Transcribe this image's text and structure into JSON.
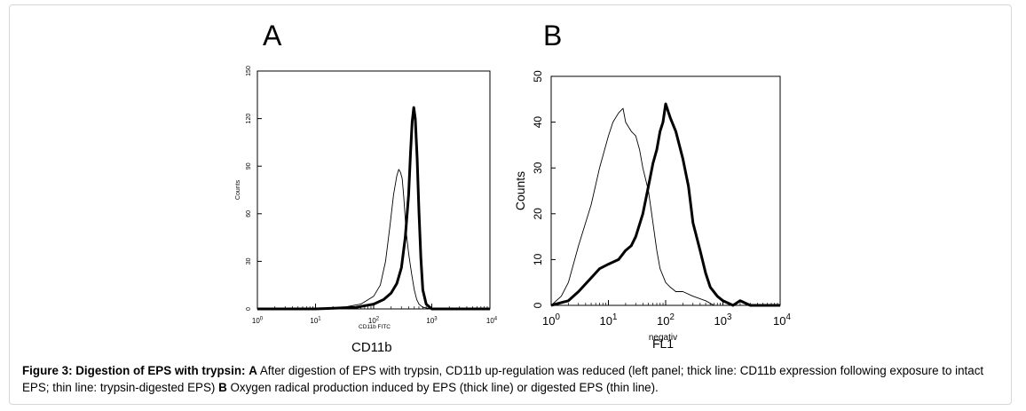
{
  "panels": {
    "a_letter": "A",
    "b_letter": "B"
  },
  "caption": {
    "figure_label": "Figure 3: Digestion of EPS with trypsin:",
    "a_label": "A",
    "a_text": " After digestion of EPS with trypsin, CD11b up-regulation was reduced (left panel; thick line: CD11b expression following exposure to intact EPS; thin line: trypsin-digested EPS) ",
    "b_label": "B",
    "b_text": " Oxygen radical production induced by EPS (thick line) or digested EPS (thin line)."
  },
  "chart_data": [
    {
      "type": "line",
      "panel": "A",
      "xscale": "log",
      "xlim": [
        1,
        10000
      ],
      "ylim": [
        0,
        150
      ],
      "xticks": [
        "10^0",
        "10^1",
        "10^2",
        "10^3",
        "10^4"
      ],
      "yticks": [
        "0",
        "30",
        "60",
        "90",
        "120",
        "150"
      ],
      "ylabel": "Counts",
      "xlabel_inner": "CD11b FITC",
      "xlabel": "CD11b",
      "series": [
        {
          "style": "thick",
          "x": [
            1,
            10,
            50,
            100,
            150,
            200,
            250,
            300,
            350,
            400,
            430,
            460,
            490,
            520,
            560,
            600,
            650,
            700,
            800,
            1000,
            2000,
            10000
          ],
          "y": [
            0,
            0,
            1,
            3,
            6,
            10,
            16,
            26,
            45,
            72,
            98,
            118,
            127,
            120,
            95,
            62,
            32,
            12,
            3,
            0,
            0,
            0
          ]
        },
        {
          "style": "thin",
          "x": [
            1,
            10,
            30,
            60,
            100,
            130,
            160,
            190,
            220,
            250,
            270,
            290,
            310,
            330,
            360,
            400,
            450,
            500,
            550,
            600,
            700,
            1000,
            10000
          ],
          "y": [
            0,
            0,
            1,
            3,
            8,
            15,
            30,
            52,
            72,
            84,
            88,
            86,
            82,
            70,
            50,
            35,
            22,
            12,
            6,
            3,
            1,
            0,
            0
          ]
        }
      ]
    },
    {
      "type": "line",
      "panel": "B",
      "xscale": "log",
      "xlim": [
        1,
        10000
      ],
      "ylim": [
        0,
        50
      ],
      "xticks": [
        "10^0",
        "10^1",
        "10^2",
        "10^3",
        "10^4"
      ],
      "yticks": [
        "0",
        "10",
        "20",
        "30",
        "40",
        "50"
      ],
      "ylabel": "Counts",
      "xlabel": "FL1",
      "xlabel_below": "negativ",
      "series": [
        {
          "style": "thick",
          "x": [
            1,
            2,
            3,
            5,
            7,
            10,
            15,
            20,
            25,
            30,
            40,
            50,
            60,
            70,
            80,
            90,
            100,
            120,
            150,
            200,
            250,
            300,
            400,
            500,
            600,
            800,
            1000,
            1500,
            2000,
            3000,
            10000
          ],
          "y": [
            0,
            1,
            3,
            6,
            8,
            9,
            10,
            12,
            13,
            15,
            20,
            26,
            31,
            34,
            38,
            40,
            44,
            41,
            38,
            32,
            26,
            18,
            12,
            7,
            4,
            2,
            1,
            0,
            1,
            0,
            0
          ]
        },
        {
          "style": "thin",
          "x": [
            1,
            1.5,
            2,
            3,
            5,
            7,
            10,
            12,
            15,
            18,
            20,
            25,
            30,
            35,
            40,
            50,
            60,
            70,
            80,
            100,
            120,
            150,
            200,
            300,
            500,
            700,
            1000,
            10000
          ],
          "y": [
            0,
            2,
            5,
            13,
            22,
            30,
            37,
            40,
            42,
            43,
            40,
            38,
            37,
            34,
            30,
            25,
            18,
            12,
            8,
            5,
            4,
            3,
            3,
            2,
            1,
            0,
            0,
            0
          ]
        }
      ]
    }
  ]
}
